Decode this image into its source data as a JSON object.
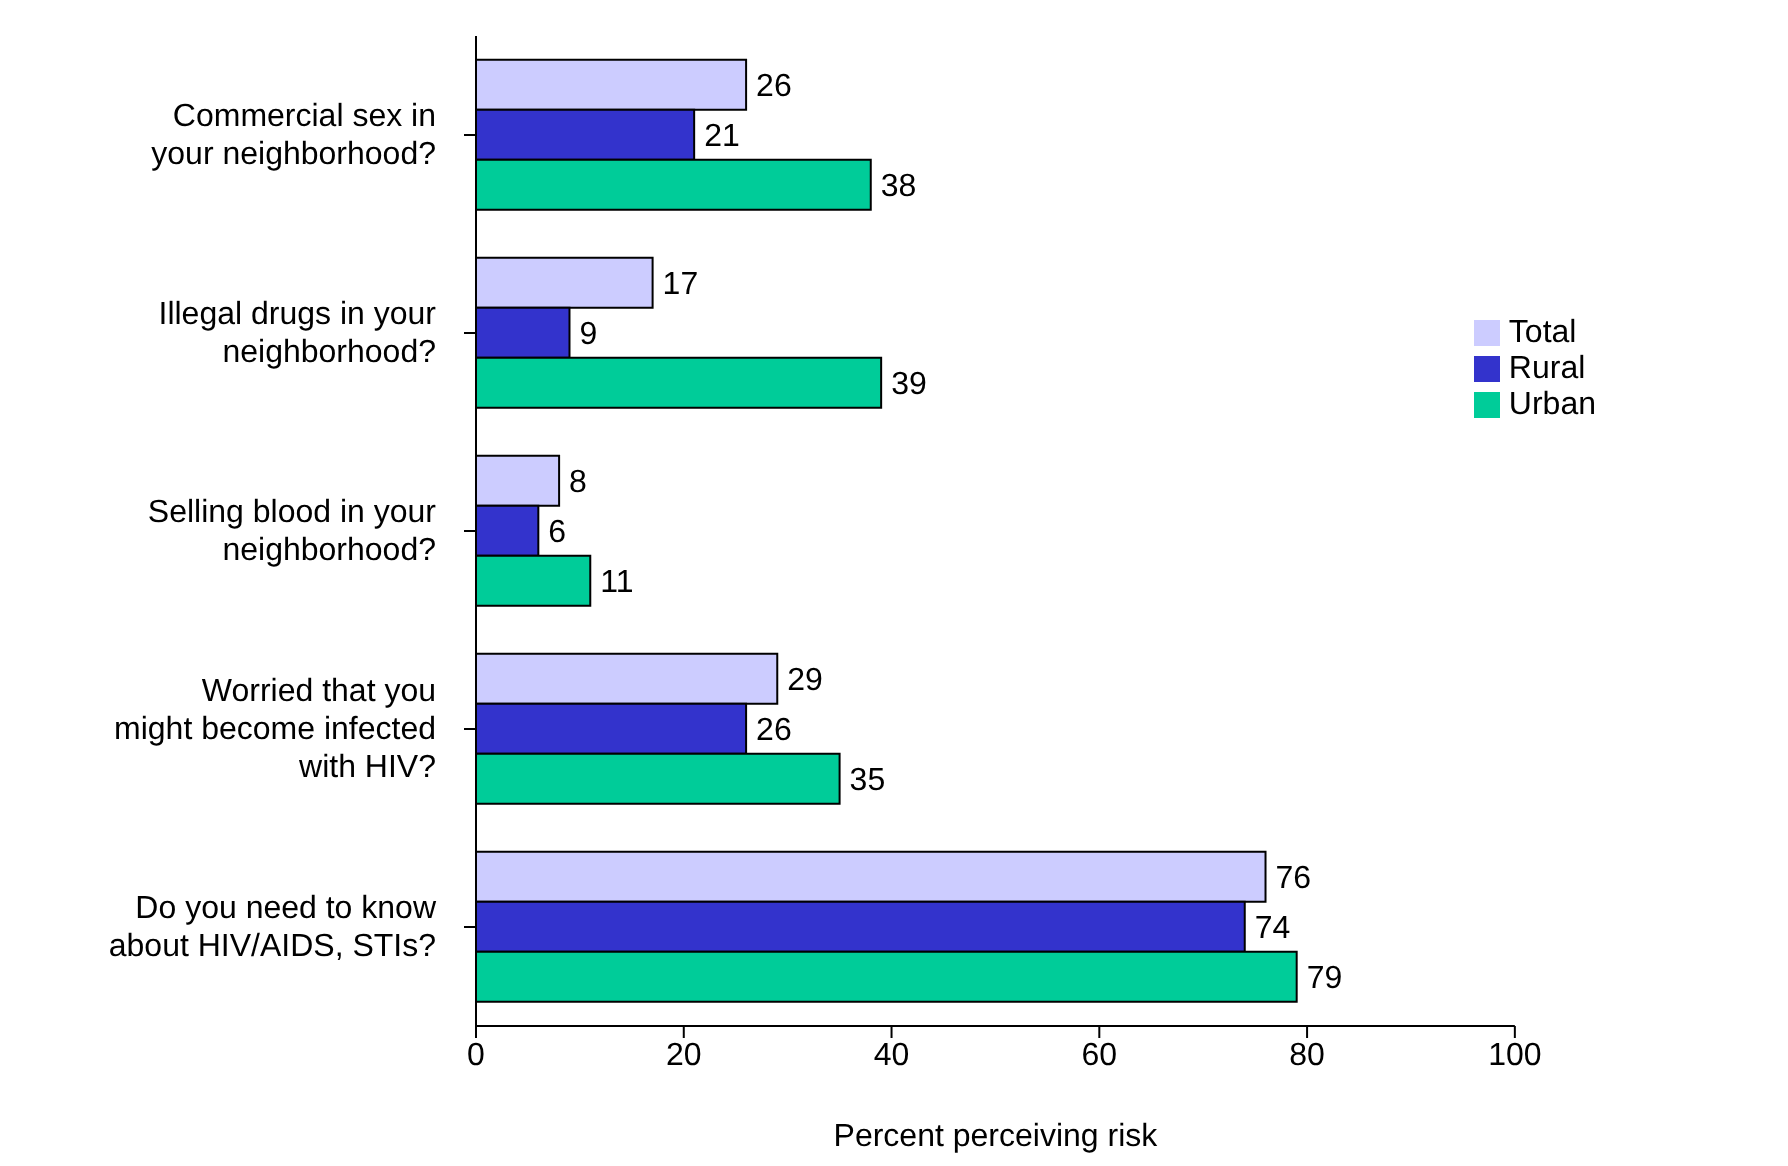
{
  "chart_data": {
    "type": "bar",
    "orientation": "horizontal",
    "xlabel": "Percent perceiving risk",
    "categories": [
      "Commercial sex in your neighborhood?",
      "Illegal drugs in your neighborhood?",
      "Selling blood in your neighborhood?",
      "Worried that you might become infected with HIV?",
      "Do you need to know about HIV/AIDS, STIs?"
    ],
    "series": [
      {
        "name": "Total",
        "color": "#ccccff",
        "values": [
          26,
          17,
          8,
          29,
          76
        ]
      },
      {
        "name": "Rural",
        "color": "#3333cc",
        "values": [
          21,
          9,
          6,
          26,
          74
        ]
      },
      {
        "name": "Urban",
        "color": "#00cc99",
        "values": [
          38,
          39,
          11,
          35,
          79
        ]
      }
    ],
    "xlim": [
      0,
      100
    ],
    "xticks": [
      0,
      20,
      40,
      60,
      80,
      100
    ],
    "data_labels": true,
    "grid": false,
    "legend": "right"
  }
}
